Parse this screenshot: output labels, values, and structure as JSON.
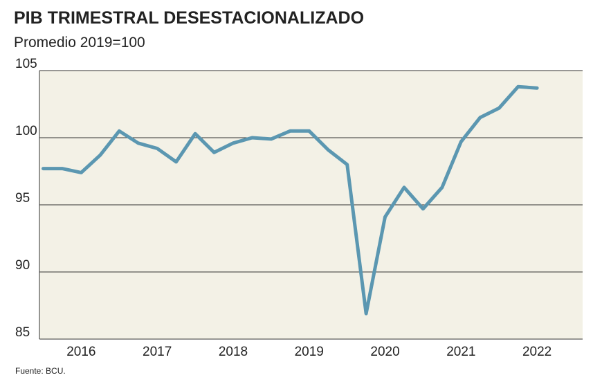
{
  "chart_data": {
    "type": "line",
    "title": "PIB TRIMESTRAL DESESTACIONALIZADO",
    "subtitle": "Promedio 2019=100",
    "source": "Fuente: BCU.",
    "x": [
      2015.5,
      2015.75,
      2016,
      2016.25,
      2016.5,
      2016.75,
      2017,
      2017.25,
      2017.5,
      2017.75,
      2018,
      2018.25,
      2018.5,
      2018.75,
      2019,
      2019.25,
      2019.5,
      2019.75,
      2020,
      2020.25,
      2020.5,
      2020.75,
      2021,
      2021.25,
      2021.5,
      2021.75,
      2022
    ],
    "series": [
      {
        "color": "#5b97b1",
        "values": [
          97.7,
          97.7,
          97.4,
          98.7,
          100.5,
          99.6,
          99.2,
          98.2,
          100.3,
          98.9,
          99.6,
          100.0,
          99.9,
          100.5,
          100.5,
          99.1,
          98.0,
          86.9,
          94.1,
          96.3,
          94.7,
          96.3,
          99.7,
          101.5,
          102.2,
          103.8,
          103.7
        ]
      }
    ],
    "xlim": [
      2015.45,
      2022.6
    ],
    "xticks": [
      2016,
      2017,
      2018,
      2019,
      2020,
      2021,
      2022
    ],
    "ylim": [
      85,
      105
    ],
    "yticks": [
      85,
      90,
      95,
      100,
      105
    ],
    "grid": true
  }
}
